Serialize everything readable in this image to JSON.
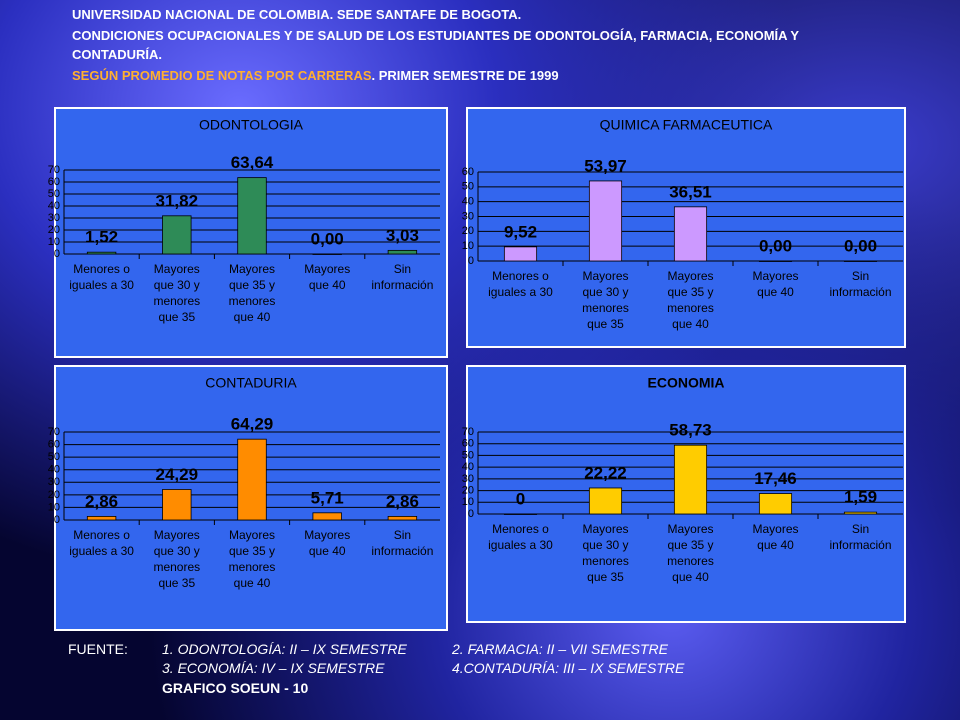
{
  "header": {
    "line1": "UNIVERSIDAD NACIONAL DE COLOMBIA. SEDE SANTAFE DE BOGOTA.",
    "line2": "CONDICIONES OCUPACIONALES Y DE SALUD DE LOS ESTUDIANTES DE ODONTOLOGÍA, FARMACIA, ECONOMÍA Y",
    "line3": "CONTADURÍA.",
    "line4_highlight": "SEGÚN PROMEDIO DE NOTAS POR CARRERAS",
    "line4_rest": ". PRIMER SEMESTRE DE 1999"
  },
  "chart_data": [
    {
      "type": "bar",
      "title": "ODONTOLOGIA",
      "color": "#2e8b57",
      "categories": [
        [
          "Menores o",
          "iguales a 30"
        ],
        [
          "Mayores",
          "que 30 y",
          "menores",
          "que 35"
        ],
        [
          "Mayores",
          "que 35 y",
          "menores",
          "que 40"
        ],
        [
          "Mayores",
          "que 40"
        ],
        [
          "Sin",
          "información"
        ]
      ],
      "values": [
        1.52,
        31.82,
        63.64,
        0,
        3.03
      ],
      "value_labels": [
        "1,52",
        "31,82",
        "63,64",
        "0,00",
        "3,03"
      ],
      "ylim": [
        0,
        70
      ],
      "yticks": [
        0,
        10,
        20,
        30,
        40,
        50,
        60,
        70
      ],
      "grid": true
    },
    {
      "type": "bar",
      "title": "QUIMICA FARMACEUTICA",
      "color": "#cc99ff",
      "categories": [
        [
          "Menores o",
          "iguales a 30"
        ],
        [
          "Mayores",
          "que 30 y",
          "menores",
          "que 35"
        ],
        [
          "Mayores",
          "que 35 y",
          "menores",
          "que 40"
        ],
        [
          "Mayores",
          "que 40"
        ],
        [
          "Sin",
          "información"
        ]
      ],
      "values": [
        9.52,
        53.97,
        36.51,
        0,
        0
      ],
      "value_labels": [
        "9,52",
        "53,97",
        "36,51",
        "0,00",
        "0,00"
      ],
      "ylim": [
        0,
        60
      ],
      "yticks": [
        0,
        10,
        20,
        30,
        40,
        50,
        60
      ],
      "grid": true
    },
    {
      "type": "bar",
      "title": "CONTADURIA",
      "color": "#ff8c00",
      "categories": [
        [
          "Menores o",
          "iguales a 30"
        ],
        [
          "Mayores",
          "que 30 y",
          "menores",
          "que 35"
        ],
        [
          "Mayores",
          "que 35 y",
          "menores",
          "que 40"
        ],
        [
          "Mayores",
          "que 40"
        ],
        [
          "Sin",
          "información"
        ]
      ],
      "values": [
        2.86,
        24.29,
        64.29,
        5.71,
        2.86
      ],
      "value_labels": [
        "2,86",
        "24,29",
        "64,29",
        "5,71",
        "2,86"
      ],
      "ylim": [
        0,
        70
      ],
      "yticks": [
        0,
        10,
        20,
        30,
        40,
        50,
        60,
        70
      ],
      "grid": true
    },
    {
      "type": "bar",
      "title": "ECONOMIA",
      "color": "#ffcc00",
      "categories": [
        [
          "Menores o",
          "iguales a 30"
        ],
        [
          "Mayores",
          "que 30 y",
          "menores",
          "que 35"
        ],
        [
          "Mayores",
          "que 35 y",
          "menores",
          "que 40"
        ],
        [
          "Mayores",
          "que 40"
        ],
        [
          "Sin",
          "información"
        ]
      ],
      "values": [
        0,
        22.22,
        58.73,
        17.46,
        1.59
      ],
      "value_labels": [
        "0",
        "22,22",
        "58,73",
        "17,46",
        "1,59"
      ],
      "ylim": [
        0,
        70
      ],
      "yticks": [
        0,
        10,
        20,
        30,
        40,
        50,
        60,
        70
      ],
      "grid": true
    }
  ],
  "footer": {
    "source_label": "FUENTE:",
    "notes": [
      [
        "1. ODONTOLOGÍA: II – IX SEMESTRE",
        "2. FARMACIA: II – VII SEMESTRE"
      ],
      [
        "3. ECONOMÍA: IV – IX SEMESTRE",
        "4.CONTADURÍA: III – IX SEMESTRE"
      ]
    ],
    "code": "GRAFICO SOEUN - 10"
  }
}
